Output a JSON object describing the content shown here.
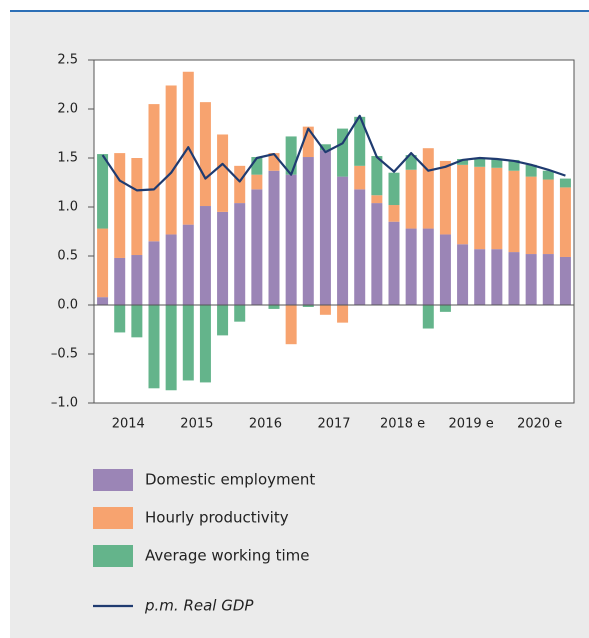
{
  "chart_data": {
    "type": "bar",
    "stacked": true,
    "categories": [
      "2014",
      null,
      null,
      null,
      "2015",
      null,
      null,
      null,
      "2016",
      null,
      null,
      null,
      "2017",
      null,
      null,
      null,
      "2018 e",
      null,
      null,
      null,
      "2019 e",
      null,
      null,
      null,
      "2020 e",
      null,
      null,
      null
    ],
    "series": [
      {
        "name": "Domestic employment",
        "color": "#9b85b6",
        "kind": "bar",
        "values": [
          0.08,
          0.48,
          0.51,
          0.65,
          0.72,
          0.82,
          1.01,
          0.95,
          1.04,
          1.18,
          1.37,
          1.33,
          1.51,
          1.58,
          1.31,
          1.18,
          1.04,
          0.85,
          0.78,
          0.78,
          0.72,
          0.62,
          0.57,
          0.57,
          0.54,
          0.52,
          0.52,
          0.49
        ]
      },
      {
        "name": "Hourly productivity",
        "color": "#f7a36f",
        "kind": "bar",
        "values": [
          0.7,
          1.07,
          0.99,
          1.4,
          1.52,
          1.56,
          1.06,
          0.79,
          0.38,
          0.15,
          0.18,
          -0.4,
          0.31,
          -0.1,
          -0.18,
          0.24,
          0.08,
          0.17,
          0.6,
          0.82,
          0.75,
          0.81,
          0.84,
          0.83,
          0.83,
          0.79,
          0.76,
          0.71
        ]
      },
      {
        "name": "Average working time",
        "color": "#64b48b",
        "kind": "bar",
        "values": [
          0.76,
          -0.28,
          -0.33,
          -0.85,
          -0.87,
          -0.77,
          -0.79,
          -0.31,
          -0.17,
          0.18,
          -0.04,
          0.39,
          -0.02,
          0.06,
          0.49,
          0.5,
          0.4,
          0.33,
          0.15,
          -0.24,
          -0.07,
          0.06,
          0.09,
          0.09,
          0.11,
          0.12,
          0.09,
          0.09
        ]
      },
      {
        "name": "p.m. Real GDP",
        "color": "#1f3b70",
        "kind": "line",
        "values": [
          1.53,
          1.27,
          1.17,
          1.18,
          1.35,
          1.61,
          1.29,
          1.44,
          1.26,
          1.5,
          1.54,
          1.33,
          1.8,
          1.56,
          1.65,
          1.93,
          1.51,
          1.36,
          1.55,
          1.37,
          1.41,
          1.48,
          1.5,
          1.49,
          1.47,
          1.43,
          1.38,
          1.32
        ]
      }
    ],
    "ylim": [
      -1.0,
      2.5
    ],
    "yticks": [
      {
        "value": -1.0,
        "label": "–1.0"
      },
      {
        "value": -0.5,
        "label": "–0.5"
      },
      {
        "value": 0,
        "label": "0.0"
      },
      {
        "value": 0.5,
        "label": "0.5"
      },
      {
        "value": 1.0,
        "label": "1.0"
      },
      {
        "value": 1.5,
        "label": "1.5"
      },
      {
        "value": 2.0,
        "label": "2.0"
      },
      {
        "value": 2.5,
        "label": "2.5"
      }
    ],
    "grid": false
  }
}
